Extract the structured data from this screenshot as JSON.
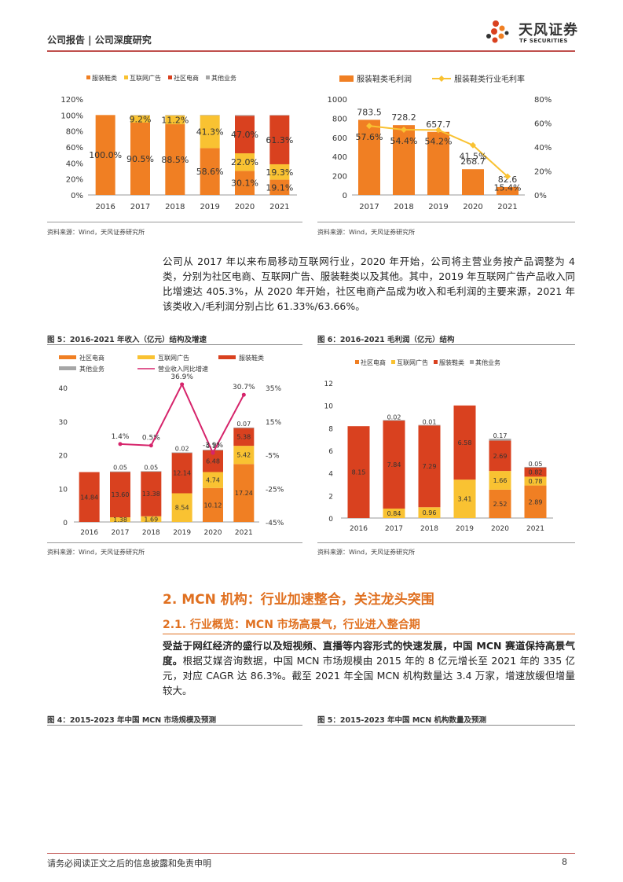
{
  "header": {
    "left": "公司报告 | 公司深度研究",
    "logo_cn": "天风证券",
    "logo_en": "TF SECURITIES"
  },
  "colors": {
    "orange": "#f07f23",
    "yellow": "#f9c232",
    "red": "#d9411f",
    "gray": "#a6a6a6",
    "magenta": "#d6246b",
    "accent": "#e07020"
  },
  "chart_data": [
    {
      "id": "chart1",
      "type": "bar",
      "stacked": true,
      "legend": [
        "服装鞋类",
        "互联网广告",
        "社区电商",
        "其他业务"
      ],
      "categories": [
        "2016",
        "2017",
        "2018",
        "2019",
        "2020",
        "2021"
      ],
      "series": [
        {
          "name": "服装鞋类",
          "values": [
            100.0,
            90.5,
            88.5,
            58.6,
            30.1,
            19.1
          ],
          "labels": [
            "100.0%",
            "90.5%",
            "88.5%",
            "58.6%",
            "30.1%",
            "19.1%"
          ]
        },
        {
          "name": "互联网广告",
          "values": [
            0,
            9.2,
            11.2,
            41.3,
            22.0,
            19.3
          ],
          "labels": [
            "",
            "9.2%",
            "11.2%",
            "41.3%",
            "22.0%",
            "19.3%"
          ]
        },
        {
          "name": "社区电商",
          "values": [
            0,
            0,
            0,
            0,
            47.0,
            61.3
          ],
          "labels": [
            "",
            "",
            "",
            "",
            "47.0%",
            "61.3%"
          ]
        },
        {
          "name": "其他业务",
          "values": [
            0,
            0.3,
            0.3,
            0.1,
            0.9,
            0.3
          ],
          "labels": [
            "",
            "",
            "",
            "",
            "",
            ""
          ]
        }
      ],
      "yticks": [
        "0%",
        "20%",
        "40%",
        "60%",
        "80%",
        "100%",
        "120%"
      ],
      "ylim": [
        0,
        120
      ],
      "source": "资料来源：Wind，天风证券研究所"
    },
    {
      "id": "chart2",
      "type": "bar+line",
      "legend": [
        "服装鞋类毛利润",
        "服装鞋类行业毛利率"
      ],
      "categories": [
        "2017",
        "2018",
        "2019",
        "2020",
        "2021"
      ],
      "bars": [
        783.5,
        728.2,
        657.7,
        268.7,
        82.6
      ],
      "bar_labels": [
        "783.5",
        "728.2",
        "657.7",
        "268.7",
        "82.6"
      ],
      "line": [
        57.6,
        54.4,
        54.2,
        41.5,
        15.4
      ],
      "line_labels": [
        "57.6%",
        "54.4%",
        "54.2%",
        "41.5%",
        "15.4%"
      ],
      "yticks_left": [
        "0",
        "200",
        "400",
        "600",
        "800",
        "1000"
      ],
      "ylim_left": [
        0,
        1000
      ],
      "yticks_right": [
        "0%",
        "20%",
        "40%",
        "60%",
        "80%"
      ],
      "ylim_right": [
        0,
        80
      ],
      "source": "资料来源：Wind，天风证券研究所"
    },
    {
      "id": "chart3",
      "type": "bar+line",
      "stacked": true,
      "title": "图 5：2016-2021 年收入（亿元）结构及增速",
      "legend": [
        "社区电商",
        "互联网广告",
        "服装鞋类",
        "其他业务",
        "营业收入同比增速"
      ],
      "categories": [
        "2016",
        "2017",
        "2018",
        "2019",
        "2020",
        "2021"
      ],
      "series": [
        {
          "name": "社区电商",
          "values": [
            0,
            0,
            0,
            0,
            10.12,
            17.24
          ],
          "labels": [
            "",
            "",
            "",
            "",
            "10.12",
            "17.24"
          ]
        },
        {
          "name": "互联网广告",
          "values": [
            0,
            1.38,
            1.69,
            8.54,
            4.74,
            5.42
          ],
          "labels": [
            "",
            "1.38",
            "1.69",
            "8.54",
            "4.74",
            "5.42"
          ]
        },
        {
          "name": "服装鞋类",
          "values": [
            14.84,
            13.6,
            13.38,
            12.14,
            6.48,
            5.38
          ],
          "labels": [
            "14.84",
            "13.60",
            "13.38",
            "12.14",
            "6.48",
            "5.38"
          ]
        },
        {
          "name": "其他业务",
          "values": [
            0,
            0.05,
            0.05,
            0.02,
            0.17,
            0.07
          ],
          "labels": [
            "",
            "0.05",
            "0.05",
            "0.02",
            "0.17",
            "0.07"
          ]
        }
      ],
      "growth": [
        null,
        1.4,
        0.5,
        36.9,
        -3.9,
        30.7
      ],
      "growth_labels": [
        "",
        "1.4%",
        "0.5%",
        "36.9%",
        "-3.9%",
        "30.7%"
      ],
      "yticks_left": [
        "0",
        "10",
        "20",
        "30",
        "40"
      ],
      "ylim_left": [
        0,
        40
      ],
      "yticks_right": [
        "-45%",
        "-25%",
        "-5%",
        "15%",
        "35%"
      ],
      "ylim_right": [
        -45,
        35
      ],
      "source": "资料来源：Wind，天风证券研究所"
    },
    {
      "id": "chart4",
      "type": "bar",
      "stacked": true,
      "title": "图 6：2016-2021 毛利润（亿元）结构",
      "legend": [
        "社区电商",
        "互联网广告",
        "服装鞋类",
        "其他业务"
      ],
      "categories": [
        "2016",
        "2017",
        "2018",
        "2019",
        "2020",
        "2021"
      ],
      "series": [
        {
          "name": "社区电商",
          "values": [
            0,
            0,
            0,
            0,
            2.52,
            2.89
          ],
          "labels": [
            "",
            "",
            "",
            "",
            "2.52",
            "2.89"
          ]
        },
        {
          "name": "互联网广告",
          "values": [
            0,
            0.84,
            0.96,
            3.41,
            1.66,
            0.78
          ],
          "labels": [
            "",
            "0.84",
            "0.96",
            "3.41",
            "1.66",
            "0.78"
          ]
        },
        {
          "name": "服装鞋类",
          "values": [
            8.15,
            7.84,
            7.29,
            6.58,
            2.69,
            0.82
          ],
          "labels": [
            "8.15",
            "7.84",
            "7.29",
            "6.58",
            "2.69",
            "0.82"
          ]
        },
        {
          "name": "其他业务",
          "values": [
            0,
            0.02,
            0.01,
            0,
            0.17,
            0.05
          ],
          "labels": [
            "",
            "0.02",
            "0.01",
            "",
            "0.17",
            "0.05"
          ]
        }
      ],
      "yticks": [
        "0",
        "2",
        "4",
        "6",
        "8",
        "10",
        "12"
      ],
      "ylim": [
        0,
        12
      ],
      "source": "资料来源：Wind，天风证券研究所"
    }
  ],
  "para1": "公司从 2017 年以来布局移动互联网行业，2020 年开始，公司将主营业务按产品调整为 4 类，分别为社区电商、互联网广告、服装鞋类以及其他。其中，2019 年互联网广告产品收入同比增速达 405.3%，从 2020 年开始，社区电商产品成为收入和毛利润的主要来源，2021 年该类收入/毛利润分别占比 61.33%/63.66%。",
  "section2": "2. MCN 机构：行业加速整合，关注龙头突围",
  "section21": "2.1. 行业概览：MCN 市场高景气，行业进入整合期",
  "para2_bold": "受益于网红经济的盛行以及短视频、直播等内容形式的快速发展，中国 MCN 赛道保持高景气度。",
  "para2_rest": "根据艾媒咨询数据，中国 MCN 市场规模由 2015 年的 8 亿元增长至 2021 年的 335 亿元，对应 CAGR 达 86.3%。截至 2021 年全国 MCN 机构数量达 3.4 万家，增速放缓但增量较大。",
  "fig4_title": "图 4：2015-2023 年中国 MCN 市场规模及预测",
  "fig5_title": "图 5：2015-2023 年中国 MCN 机构数量及预测",
  "footer": "请务必阅读正文之后的信息披露和免责申明",
  "page_number": "8"
}
